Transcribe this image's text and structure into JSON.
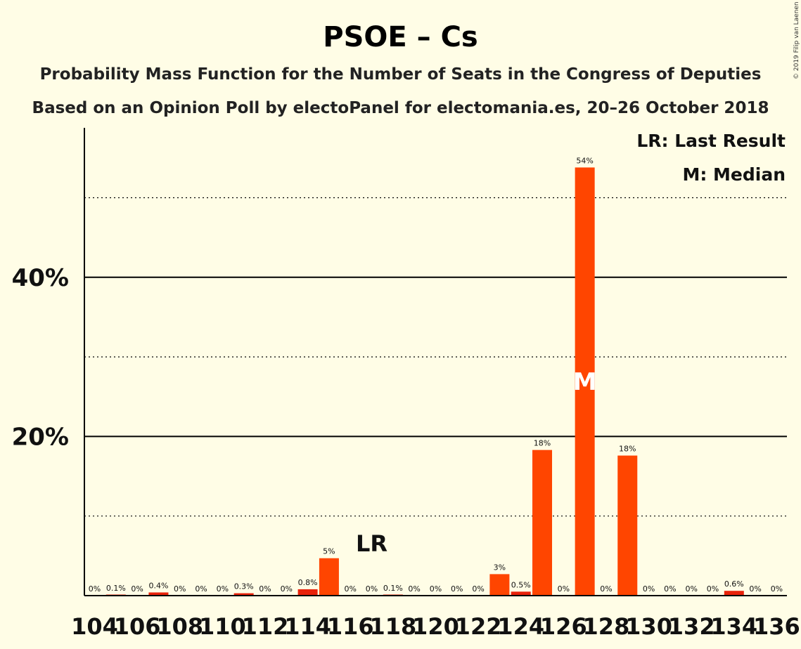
{
  "chart_data": {
    "type": "bar",
    "title": "PSOE – Cs",
    "subtitle_1": "Probability Mass Function for the Number of Seats in the Congress of Deputies",
    "subtitle_2": "Based on an Opinion Poll by electoPanel for electomania.es, 20–26 October 2018",
    "copyright": "© 2019 Filip van Laenen",
    "legend": {
      "lr": "LR: Last Result",
      "m": "M: Median",
      "placement": "top-right"
    },
    "ylim": [
      0,
      58
    ],
    "yticks": [
      {
        "value": 20,
        "label": "20%"
      },
      {
        "value": 40,
        "label": "40%"
      }
    ],
    "grid": {
      "solid": [
        20,
        40
      ],
      "dotted": [
        10,
        30,
        50
      ]
    },
    "x": [
      104,
      105,
      106,
      107,
      108,
      109,
      110,
      111,
      112,
      113,
      114,
      115,
      116,
      117,
      118,
      119,
      120,
      121,
      122,
      123,
      124,
      125,
      126,
      127,
      128,
      129,
      130,
      131,
      132,
      133,
      134,
      135,
      136
    ],
    "values": [
      0,
      0.1,
      0,
      0.4,
      0,
      0,
      0,
      0.3,
      0,
      0,
      0.8,
      4.7,
      0,
      0,
      0.1,
      0,
      0,
      0,
      0,
      2.7,
      0.5,
      18.3,
      0,
      53.8,
      0,
      17.6,
      0,
      0,
      0,
      0,
      0.6,
      0,
      0
    ],
    "data_labels": [
      "0%",
      "0.1%",
      "0%",
      "0.4%",
      "0%",
      "0%",
      "0%",
      "0.3%",
      "0%",
      "0%",
      "0.8%",
      "5%",
      "0%",
      "0%",
      "0.1%",
      "0%",
      "0%",
      "0%",
      "0%",
      "3%",
      "0.5%",
      "18%",
      "0%",
      "54%",
      "0%",
      "18%",
      "0%",
      "0%",
      "0%",
      "0%",
      "0.6%",
      "0%",
      "0%"
    ],
    "xtick_values": [
      104,
      106,
      108,
      110,
      112,
      114,
      116,
      118,
      120,
      122,
      124,
      126,
      128,
      130,
      132,
      134,
      136
    ],
    "last_result": {
      "x": 117,
      "label": "LR"
    },
    "median": {
      "x": 127,
      "label": "M"
    },
    "colors": {
      "bar": "#ff4500",
      "bar_dark": "#e8220a",
      "background": "#fffde6"
    }
  }
}
